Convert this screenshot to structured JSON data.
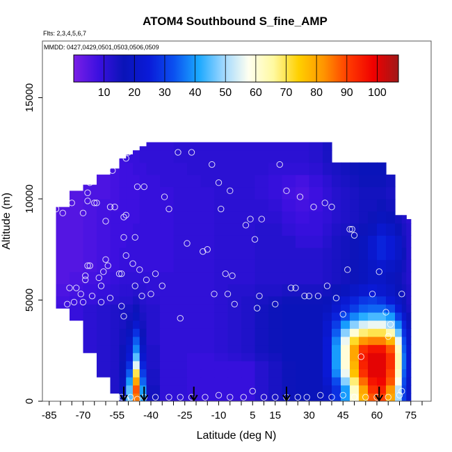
{
  "chart_data": {
    "type": "heatmap",
    "title": "ATOM4 Southbound S_fine_AMP",
    "flights_note": "Flts: 2,3,4,5,6,7",
    "dates_note": "MMDD: 0427,0429,0501,0503,0506,0509",
    "xlabel": "Latitude (deg N)",
    "ylabel": "Altitude (m)",
    "xlim": [
      -88,
      84
    ],
    "ylim": [
      0,
      17800
    ],
    "x_ticks": [
      -85,
      -70,
      -55,
      -40,
      -25,
      -10,
      5,
      15,
      30,
      45,
      60,
      75
    ],
    "x_minor_step": 5,
    "y_ticks": [
      0,
      5000,
      10000,
      15000
    ],
    "colorbar": {
      "range": [
        0,
        107
      ],
      "ticks": [
        10,
        20,
        30,
        40,
        50,
        60,
        70,
        80,
        90,
        100
      ],
      "colors": [
        "#7a1fe6",
        "#3b10e0",
        "#0a14b8",
        "#0a1ad8",
        "#0b50f0",
        "#1aa8ff",
        "#9fd8ff",
        "#fffff0",
        "#fff9a0",
        "#ffd000",
        "#ff9500",
        "#ff3a00",
        "#f00000",
        "#a01818"
      ]
    },
    "arrows_latitude": [
      -52,
      -43,
      -21,
      20,
      61
    ],
    "grid_x": [
      -88,
      -82,
      -76,
      -70,
      -64,
      -58,
      -54,
      -51,
      -48,
      -45,
      -42,
      -36,
      -30,
      -24,
      -18,
      -12,
      -6,
      0,
      6,
      12,
      18,
      24,
      30,
      36,
      40,
      44,
      48,
      52,
      56,
      60,
      64,
      68,
      71,
      73
    ],
    "grid_y": [
      0,
      400,
      800,
      1200,
      1600,
      2000,
      2400,
      2800,
      3200,
      3600,
      4000,
      4400,
      4800,
      5200,
      5800,
      6400,
      7000,
      7600,
      8200,
      8800,
      9400,
      10000,
      10600,
      11200,
      11800,
      12400
    ],
    "cell_values": [
      [
        8,
        8,
        9,
        11,
        12,
        13,
        18,
        45,
        85,
        40,
        15,
        10,
        10,
        9,
        9,
        9,
        9,
        9,
        12,
        14,
        16,
        17,
        17,
        20,
        28,
        40,
        60,
        78,
        88,
        90,
        80,
        50,
        30,
        20
      ],
      [
        8,
        8,
        9,
        11,
        12,
        13,
        18,
        45,
        88,
        40,
        15,
        10,
        10,
        9,
        9,
        9,
        9,
        9,
        12,
        14,
        16,
        17,
        17,
        20,
        28,
        40,
        62,
        80,
        92,
        94,
        82,
        52,
        30,
        20
      ],
      [
        8,
        8,
        9,
        11,
        12,
        13,
        18,
        40,
        80,
        35,
        14,
        10,
        10,
        9,
        9,
        9,
        9,
        9,
        12,
        14,
        16,
        17,
        17,
        22,
        32,
        48,
        68,
        86,
        96,
        98,
        88,
        58,
        32,
        20
      ],
      [
        8,
        8,
        9,
        11,
        12,
        13,
        17,
        34,
        70,
        30,
        14,
        10,
        10,
        9,
        9,
        9,
        9,
        9,
        12,
        14,
        16,
        17,
        17,
        24,
        38,
        56,
        76,
        92,
        100,
        100,
        90,
        62,
        34,
        22
      ],
      [
        8,
        8,
        9,
        11,
        12,
        13,
        17,
        28,
        55,
        26,
        13,
        10,
        10,
        9,
        9,
        9,
        9,
        9,
        12,
        14,
        16,
        17,
        17,
        24,
        40,
        60,
        78,
        94,
        100,
        100,
        92,
        64,
        36,
        22
      ],
      [
        8,
        8,
        9,
        11,
        12,
        13,
        16,
        24,
        45,
        22,
        13,
        10,
        10,
        9,
        9,
        10,
        11,
        12,
        14,
        15,
        17,
        17,
        17,
        24,
        40,
        60,
        80,
        95,
        100,
        100,
        92,
        64,
        36,
        22
      ],
      [
        8,
        8,
        9,
        11,
        12,
        13,
        16,
        22,
        38,
        20,
        13,
        10,
        10,
        10,
        10,
        11,
        12,
        13,
        15,
        16,
        17,
        17,
        17,
        24,
        40,
        60,
        80,
        92,
        96,
        96,
        88,
        62,
        34,
        22
      ],
      [
        8,
        8,
        9,
        11,
        12,
        13,
        15,
        20,
        34,
        18,
        12,
        10,
        10,
        10,
        10,
        11,
        12,
        13,
        15,
        16,
        17,
        17,
        17,
        24,
        38,
        56,
        72,
        82,
        84,
        84,
        78,
        56,
        32,
        20
      ],
      [
        8,
        8,
        9,
        11,
        12,
        13,
        15,
        18,
        28,
        16,
        12,
        10,
        10,
        10,
        10,
        11,
        12,
        13,
        15,
        16,
        17,
        17,
        17,
        22,
        34,
        48,
        60,
        68,
        70,
        70,
        64,
        46,
        28,
        20
      ],
      [
        8,
        8,
        9,
        11,
        12,
        13,
        14,
        16,
        22,
        15,
        12,
        10,
        10,
        10,
        10,
        11,
        12,
        13,
        15,
        16,
        17,
        17,
        17,
        22,
        30,
        40,
        48,
        54,
        56,
        56,
        50,
        38,
        26,
        18
      ],
      [
        8,
        8,
        9,
        11,
        12,
        13,
        14,
        15,
        18,
        14,
        12,
        10,
        10,
        10,
        10,
        11,
        12,
        13,
        15,
        16,
        17,
        17,
        17,
        20,
        26,
        32,
        38,
        42,
        44,
        44,
        40,
        30,
        22,
        16
      ],
      [
        8,
        8,
        9,
        11,
        12,
        13,
        14,
        14,
        16,
        13,
        12,
        10,
        10,
        10,
        10,
        11,
        12,
        13,
        15,
        16,
        17,
        17,
        17,
        18,
        22,
        26,
        30,
        34,
        35,
        35,
        32,
        24,
        18,
        14
      ],
      [
        7,
        7,
        8,
        9,
        10,
        11,
        12,
        12,
        14,
        12,
        11,
        10,
        10,
        10,
        10,
        11,
        12,
        13,
        14,
        15,
        16,
        16,
        16,
        17,
        20,
        23,
        26,
        29,
        30,
        28,
        24,
        20,
        16,
        13
      ],
      [
        6,
        6,
        7,
        8,
        9,
        10,
        11,
        11,
        12,
        11,
        10,
        10,
        10,
        10,
        10,
        11,
        12,
        12,
        13,
        13,
        14,
        14,
        14,
        15,
        16,
        18,
        20,
        22,
        24,
        22,
        20,
        17,
        15,
        13
      ],
      [
        5,
        5,
        6,
        7,
        8,
        9,
        10,
        10,
        10,
        10,
        10,
        10,
        10,
        10,
        10,
        11,
        11,
        11,
        12,
        12,
        12,
        12,
        12,
        13,
        14,
        15,
        16,
        18,
        20,
        20,
        18,
        16,
        14,
        12
      ],
      [
        5,
        5,
        5,
        6,
        7,
        8,
        9,
        9,
        9,
        9,
        9,
        9,
        10,
        10,
        10,
        11,
        11,
        11,
        12,
        12,
        12,
        12,
        12,
        13,
        14,
        15,
        16,
        18,
        20,
        22,
        20,
        18,
        15,
        12
      ],
      [
        5,
        5,
        5,
        6,
        7,
        8,
        9,
        9,
        9,
        9,
        9,
        9,
        10,
        10,
        10,
        11,
        11,
        11,
        12,
        12,
        12,
        12,
        12,
        13,
        14,
        15,
        16,
        18,
        22,
        26,
        24,
        20,
        16,
        12
      ],
      [
        5,
        5,
        5,
        6,
        7,
        8,
        8,
        9,
        9,
        9,
        9,
        9,
        10,
        10,
        10,
        11,
        11,
        11,
        12,
        12,
        12,
        10,
        10,
        12,
        14,
        15,
        16,
        18,
        22,
        26,
        24,
        20,
        15,
        12
      ],
      [
        5,
        5,
        5,
        6,
        7,
        8,
        8,
        8,
        9,
        9,
        9,
        9,
        10,
        10,
        10,
        11,
        11,
        11,
        12,
        12,
        10,
        9,
        9,
        11,
        13,
        14,
        15,
        16,
        18,
        22,
        20,
        17,
        14,
        12
      ],
      [
        5,
        5,
        5,
        6,
        7,
        8,
        8,
        8,
        8,
        9,
        9,
        9,
        10,
        10,
        10,
        11,
        11,
        11,
        11,
        11,
        9,
        8,
        9,
        10,
        12,
        13,
        14,
        15,
        16,
        18,
        17,
        15,
        13,
        11
      ],
      [
        5,
        5,
        5,
        6,
        7,
        7,
        8,
        8,
        8,
        9,
        9,
        9,
        10,
        10,
        10,
        11,
        11,
        11,
        11,
        10,
        8,
        7,
        8,
        10,
        12,
        13,
        14,
        15,
        15,
        16,
        15,
        14,
        12,
        11
      ],
      [
        5,
        5,
        5,
        6,
        6,
        7,
        8,
        8,
        8,
        9,
        9,
        9,
        10,
        10,
        10,
        11,
        11,
        11,
        10,
        9,
        7,
        6,
        8,
        10,
        12,
        13,
        14,
        15,
        15,
        15,
        14,
        13,
        12,
        11
      ],
      [
        5,
        5,
        5,
        6,
        6,
        7,
        8,
        8,
        8,
        9,
        9,
        10,
        10,
        10,
        11,
        11,
        11,
        11,
        10,
        9,
        8,
        7,
        9,
        11,
        13,
        14,
        15,
        16,
        16,
        16,
        15,
        14,
        12,
        11
      ],
      [
        5,
        5,
        5,
        6,
        6,
        7,
        8,
        8,
        9,
        9,
        10,
        10,
        10,
        11,
        11,
        11,
        11,
        11,
        11,
        10,
        10,
        10,
        11,
        13,
        14,
        15,
        16,
        17,
        17,
        17,
        16,
        14,
        12,
        11
      ],
      [
        5,
        5,
        5,
        6,
        6,
        7,
        8,
        9,
        9,
        10,
        10,
        10,
        11,
        11,
        11,
        11,
        11,
        11,
        11,
        11,
        11,
        11,
        12,
        14,
        15,
        16,
        17,
        18,
        18,
        17,
        16,
        14,
        12,
        11
      ],
      [
        5,
        5,
        5,
        6,
        6,
        7,
        8,
        9,
        9,
        10,
        10,
        10,
        11,
        11,
        11,
        11,
        11,
        11,
        11,
        11,
        11,
        11,
        12,
        14,
        15,
        16,
        17,
        18,
        18,
        17,
        16,
        14,
        12,
        11
      ]
    ],
    "coverage_top_by_column": [
      0,
      9600,
      10400,
      10700,
      11200,
      11500,
      12000,
      12200,
      12400,
      12600,
      12800,
      12800,
      12800,
      12800,
      12800,
      12800,
      12800,
      12800,
      12800,
      12800,
      12800,
      12800,
      12800,
      12800,
      11800,
      11800,
      11800,
      11800,
      11800,
      11800,
      11200,
      9200,
      9200,
      9000
    ],
    "coverage_bottom_by_column": [
      0,
      4600,
      4000,
      2400,
      1200,
      400,
      0,
      0,
      0,
      0,
      0,
      0,
      0,
      0,
      0,
      0,
      0,
      0,
      0,
      0,
      0,
      0,
      0,
      0,
      0,
      0,
      0,
      0,
      0,
      0,
      0,
      0,
      0,
      0
    ],
    "samples": [
      [
        -86,
        6300
      ],
      [
        -84,
        9500
      ],
      [
        -82,
        9500
      ],
      [
        -79,
        9300
      ],
      [
        -77,
        4800
      ],
      [
        -76,
        5600
      ],
      [
        -75,
        9800
      ],
      [
        -74,
        4900
      ],
      [
        -73,
        5600
      ],
      [
        -71,
        5300
      ],
      [
        -70,
        4900
      ],
      [
        -70,
        9300
      ],
      [
        -69,
        6000
      ],
      [
        -69,
        6200
      ],
      [
        -68,
        6700
      ],
      [
        -68,
        10300
      ],
      [
        -68,
        9900
      ],
      [
        -67,
        10800
      ],
      [
        -67,
        6700
      ],
      [
        -66,
        5200
      ],
      [
        -65,
        9800
      ],
      [
        -64,
        9800
      ],
      [
        -63,
        6100
      ],
      [
        -62,
        5700
      ],
      [
        -62,
        4900
      ],
      [
        -61,
        6400
      ],
      [
        -60,
        8900
      ],
      [
        -60,
        7000
      ],
      [
        -59,
        6700
      ],
      [
        -58,
        9600
      ],
      [
        -58,
        5100
      ],
      [
        -57,
        11400
      ],
      [
        -56,
        9600
      ],
      [
        -55,
        12100
      ],
      [
        -54,
        6300
      ],
      [
        -53,
        6300
      ],
      [
        -53,
        4700
      ],
      [
        -52,
        4200
      ],
      [
        -52,
        9100
      ],
      [
        -52,
        8100
      ],
      [
        -51,
        9200
      ],
      [
        -51,
        12000
      ],
      [
        -51,
        7200
      ],
      [
        -50,
        12300
      ],
      [
        -48,
        6800
      ],
      [
        -47,
        5700
      ],
      [
        -47,
        8100
      ],
      [
        -46,
        10600
      ],
      [
        -45,
        6500
      ],
      [
        -44,
        5200
      ],
      [
        -43,
        10600
      ],
      [
        -42,
        6000
      ],
      [
        -40,
        5300
      ],
      [
        -38,
        6300
      ],
      [
        -35,
        5700
      ],
      [
        -34,
        10100
      ],
      [
        -32,
        9500
      ],
      [
        -28,
        12300
      ],
      [
        -27,
        4100
      ],
      [
        -24,
        7800
      ],
      [
        -22,
        12300
      ],
      [
        -17,
        7400
      ],
      [
        -15,
        7500
      ],
      [
        -13,
        11700
      ],
      [
        -12,
        5300
      ],
      [
        -10,
        10800
      ],
      [
        -9,
        9500
      ],
      [
        -7,
        6300
      ],
      [
        -6,
        5300
      ],
      [
        -5,
        10400
      ],
      [
        -4,
        6200
      ],
      [
        -3,
        4800
      ],
      [
        2,
        8700
      ],
      [
        4,
        9000
      ],
      [
        6,
        8000
      ],
      [
        7,
        4600
      ],
      [
        8,
        5200
      ],
      [
        9,
        9000
      ],
      [
        15,
        4800
      ],
      [
        17,
        11700
      ],
      [
        20,
        10400
      ],
      [
        22,
        5600
      ],
      [
        24,
        5600
      ],
      [
        26,
        10100
      ],
      [
        28,
        5200
      ],
      [
        30,
        5200
      ],
      [
        32,
        9600
      ],
      [
        34,
        5200
      ],
      [
        37,
        9800
      ],
      [
        38,
        5700
      ],
      [
        40,
        9600
      ],
      [
        42,
        5100
      ],
      [
        45,
        4300
      ],
      [
        47,
        6500
      ],
      [
        48,
        8500
      ],
      [
        49,
        8500
      ],
      [
        50,
        8200
      ],
      [
        53,
        2200
      ],
      [
        58,
        5300
      ],
      [
        61,
        6400
      ],
      [
        64,
        4400
      ],
      [
        65,
        3200
      ],
      [
        66,
        3800
      ],
      [
        71,
        5300
      ],
      [
        -83,
        300
      ],
      [
        -80,
        200
      ],
      [
        -77,
        100
      ],
      [
        -72,
        300
      ],
      [
        -69,
        300
      ],
      [
        -66,
        200
      ],
      [
        -62,
        200
      ],
      [
        -60,
        300
      ],
      [
        -58,
        100
      ],
      [
        -55,
        200
      ],
      [
        -53,
        200
      ],
      [
        -51,
        100
      ],
      [
        -49,
        200
      ],
      [
        -46,
        100
      ],
      [
        -43,
        200
      ],
      [
        -38,
        200
      ],
      [
        -32,
        200
      ],
      [
        -27,
        200
      ],
      [
        -22,
        200
      ],
      [
        -16,
        200
      ],
      [
        -10,
        300
      ],
      [
        -5,
        200
      ],
      [
        1,
        200
      ],
      [
        5,
        500
      ],
      [
        10,
        200
      ],
      [
        15,
        200
      ],
      [
        20,
        200
      ],
      [
        25,
        200
      ],
      [
        29,
        200
      ],
      [
        35,
        300
      ],
      [
        40,
        200
      ],
      [
        45,
        300
      ],
      [
        50,
        200
      ],
      [
        55,
        200
      ],
      [
        60,
        200
      ],
      [
        65,
        200
      ],
      [
        70,
        300
      ],
      [
        71,
        500
      ]
    ]
  }
}
